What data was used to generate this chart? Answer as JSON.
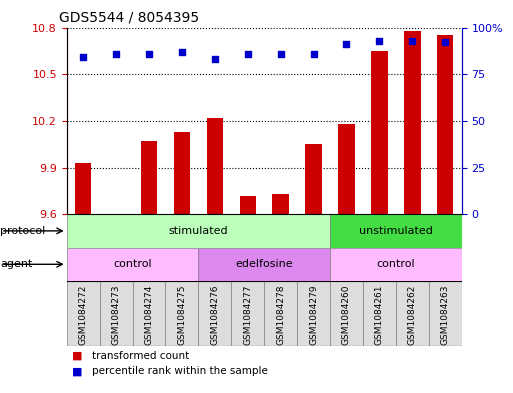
{
  "title": "GDS5544 / 8054395",
  "samples": [
    "GSM1084272",
    "GSM1084273",
    "GSM1084274",
    "GSM1084275",
    "GSM1084276",
    "GSM1084277",
    "GSM1084278",
    "GSM1084279",
    "GSM1084260",
    "GSM1084261",
    "GSM1084262",
    "GSM1084263"
  ],
  "bar_vals": [
    9.93,
    9.6,
    10.07,
    10.13,
    10.22,
    9.72,
    9.73,
    10.05,
    10.18,
    10.65,
    10.78,
    10.75
  ],
  "blue_percentiles": [
    84,
    86,
    86,
    87,
    83,
    86,
    86,
    86,
    91,
    93,
    93,
    92
  ],
  "ylim_left": [
    9.6,
    10.8
  ],
  "ylim_right": [
    0,
    100
  ],
  "yticks_left": [
    9.6,
    9.9,
    10.2,
    10.5,
    10.8
  ],
  "yticks_right": [
    0,
    25,
    50,
    75,
    100
  ],
  "bar_color": "#cc0000",
  "dot_color": "#0000cc",
  "bar_bottom": 9.6,
  "protocol_groups": [
    {
      "label": "stimulated",
      "start": 0,
      "end": 8,
      "color": "#bbffbb"
    },
    {
      "label": "unstimulated",
      "start": 8,
      "end": 12,
      "color": "#44dd44"
    }
  ],
  "agent_groups": [
    {
      "label": "control",
      "start": 0,
      "end": 4,
      "color": "#ffbbff"
    },
    {
      "label": "edelfosine",
      "start": 4,
      "end": 8,
      "color": "#dd88ee"
    },
    {
      "label": "control",
      "start": 8,
      "end": 12,
      "color": "#ffbbff"
    }
  ],
  "legend_red": "transformed count",
  "legend_blue": "percentile rank within the sample",
  "title_fontsize": 10,
  "tick_fontsize": 8,
  "label_fontsize": 8,
  "tick_label_fontsize": 7
}
